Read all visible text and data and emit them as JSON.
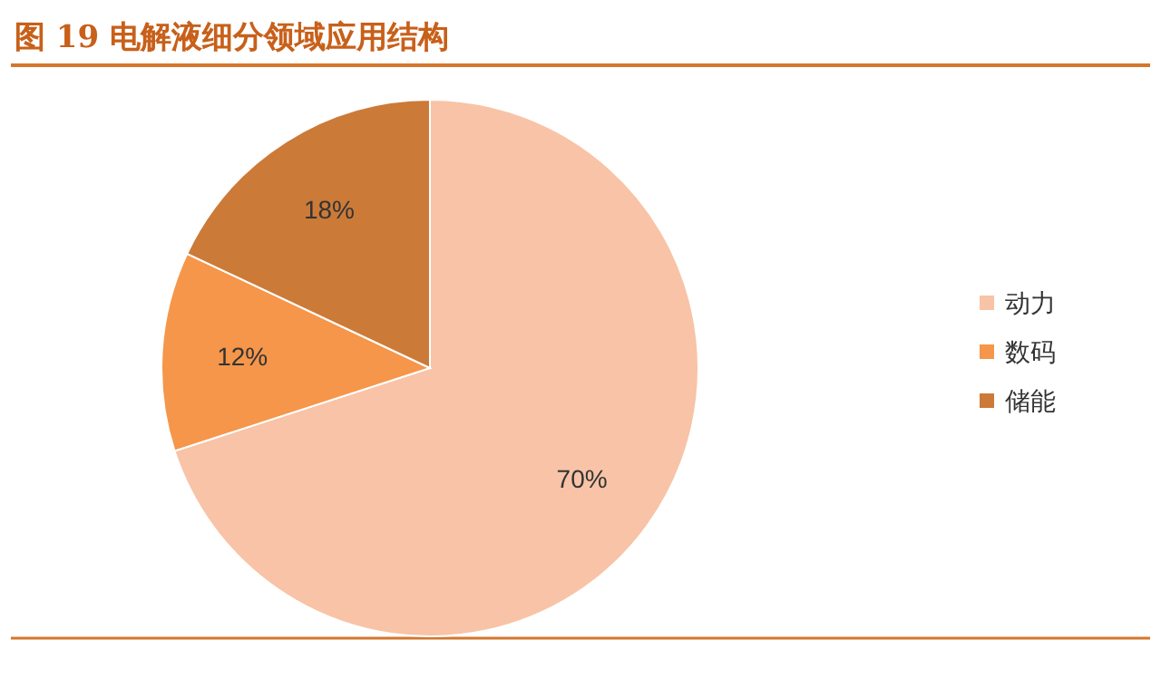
{
  "chart_data": {
    "type": "pie",
    "title": "图 19 电解液细分领域应用结构",
    "categories": [
      "动力",
      "数码",
      "储能"
    ],
    "values": [
      70,
      12,
      18
    ],
    "colors": [
      "#f8c3a6",
      "#f5964a",
      "#cc7a38"
    ],
    "value_labels": [
      "70%",
      "12%",
      "18%"
    ],
    "legend": "right"
  }
}
